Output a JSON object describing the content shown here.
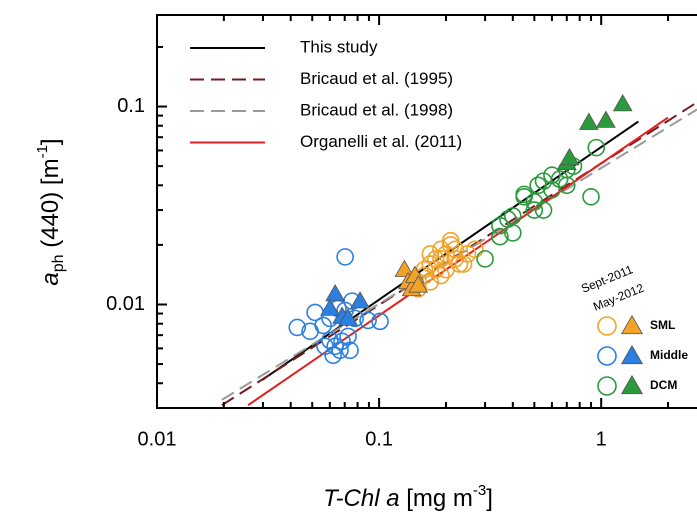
{
  "chart_data": {
    "type": "scatter",
    "xlabel": {
      "parts": [
        "T-Chl a",
        " [mg m",
        "-3",
        "]"
      ]
    },
    "ylabel": {
      "parts": [
        "a",
        "ph",
        " (440) [m",
        "-1",
        "]"
      ]
    },
    "xlog": true,
    "ylog": true,
    "xlim": [
      0.01,
      2.7
    ],
    "ylim": [
      0.003,
      0.29
    ],
    "xticks": [
      0.01,
      0.1,
      1
    ],
    "yticks": [
      0.01,
      0.1
    ],
    "xminorticks": [
      0.02,
      0.03,
      0.04,
      0.05,
      0.06,
      0.07,
      0.08,
      0.09,
      0.2,
      0.3,
      0.4,
      0.5,
      0.6,
      0.7,
      0.8,
      0.9,
      2
    ],
    "yminorticks": [
      0.004,
      0.005,
      0.006,
      0.007,
      0.008,
      0.009,
      0.02,
      0.03,
      0.04,
      0.05,
      0.06,
      0.07,
      0.08,
      0.09,
      0.2
    ],
    "series": [
      {
        "name": "This study",
        "color": "#000000",
        "dashed": false,
        "x": [
          0.0297,
          1.47
        ],
        "values": [
          0.00415,
          0.084
        ]
      },
      {
        "name": "Bricaud et al. (1995)",
        "color": "#7b1a1a",
        "dashed": true,
        "x": [
          0.0196,
          2.7
        ],
        "values": [
          0.0031,
          0.105
        ]
      },
      {
        "name": "Bricaud et al. (1998)",
        "color": "#9a9a9a",
        "dashed": true,
        "x": [
          0.0196,
          2.7
        ],
        "values": [
          0.0033,
          0.0966
        ]
      },
      {
        "name": "Organelli et al. (2011)",
        "color": "#e02020",
        "dashed": false,
        "x": [
          0.0257,
          2.0
        ],
        "values": [
          0.0031,
          0.088
        ]
      }
    ],
    "campaigns": [
      {
        "name": "Sept-2011",
        "marker": "circle"
      },
      {
        "name": "May-2012",
        "marker": "triangle"
      }
    ],
    "groups": [
      {
        "name": "SML",
        "color": "#f2a327",
        "points": [
          {
            "x": [
              0.15,
              0.16,
              0.17,
              0.18,
              0.19,
              0.2,
              0.21,
              0.22,
              0.23,
              0.25,
              0.27,
              0.17,
              0.18,
              0.19,
              0.2,
              0.16,
              0.22,
              0.24,
              0.19,
              0.21,
              0.15,
              0.17
            ],
            "values": [
              0.012,
              0.014,
              0.016,
              0.015,
              0.017,
              0.018,
              0.021,
              0.019,
              0.016,
              0.018,
              0.019,
              0.013,
              0.017,
              0.019,
              0.015,
              0.015,
              0.017,
              0.016,
              0.014,
              0.02,
              0.013,
              0.018
            ]
          },
          {
            "x": [
              0.13,
              0.135,
              0.14,
              0.145,
              0.15
            ],
            "values": [
              0.015,
              0.013,
              0.012,
              0.014,
              0.0125
            ]
          }
        ]
      },
      {
        "name": "Middle",
        "color": "#2b7fe0",
        "points": [
          {
            "x": [
              0.0428,
              0.0489,
              0.0515,
              0.056,
              0.0601,
              0.0634,
              0.0667,
              0.0703,
              0.0703,
              0.0725,
              0.074,
              0.078,
              0.0571,
              0.0601,
              0.0681,
              0.101,
              0.0892,
              0.0653,
              0.0755,
              0.0621
            ],
            "values": [
              0.00766,
              0.00732,
              0.00912,
              0.00784,
              0.00659,
              0.00615,
              0.00587,
              0.0174,
              0.00933,
              0.0069,
              0.00587,
              0.00851,
              0.00615,
              0.00851,
              0.00652,
              0.00822,
              0.00831,
              0.00955,
              0.0104,
              0.00554
            ]
          },
          {
            "x": [
              0.0634,
              0.0681,
              0.0725,
              0.0821,
              0.0601
            ],
            "values": [
              0.0113,
              0.0087,
              0.00851,
              0.0104,
              0.00955
            ]
          }
        ]
      },
      {
        "name": "DCM",
        "color": "#2a9a3c",
        "points": [
          {
            "x": [
              0.3,
              0.35,
              0.38,
              0.4,
              0.45,
              0.5,
              0.52,
              0.55,
              0.6,
              0.65,
              0.7,
              0.75,
              0.55,
              0.45,
              0.4,
              0.6,
              0.9,
              0.95,
              0.5,
              0.7,
              0.35
            ],
            "values": [
              0.017,
              0.022,
              0.027,
              0.023,
              0.035,
              0.03,
              0.04,
              0.042,
              0.045,
              0.043,
              0.048,
              0.05,
              0.03,
              0.036,
              0.028,
              0.038,
              0.035,
              0.062,
              0.033,
              0.04,
              0.025
            ]
          },
          {
            "x": [
              0.7,
              0.72,
              0.88,
              1.05,
              1.25
            ],
            "values": [
              0.052,
              0.055,
              0.083,
              0.085,
              0.103
            ]
          }
        ]
      }
    ]
  }
}
